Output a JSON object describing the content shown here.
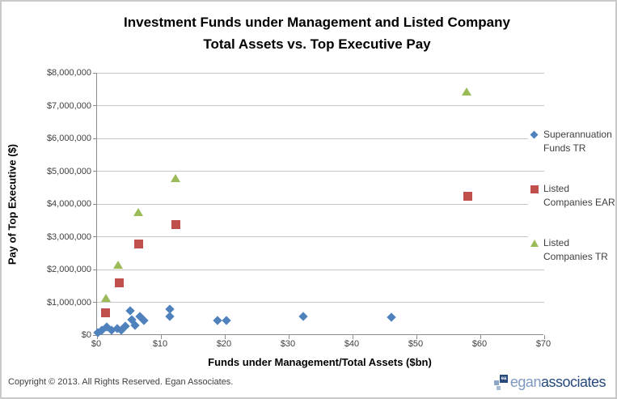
{
  "title": {
    "line1": "Investment Funds under Management and Listed Company",
    "line2": "Total Assets vs. Top Executive Pay"
  },
  "axes": {
    "y_title": "Pay of Top Executive ($)",
    "x_title": "Funds under Management/Total Assets ($bn)",
    "y_ticks": [
      {
        "value": 8000000,
        "label": "$8,000,000"
      },
      {
        "value": 7000000,
        "label": "$7,000,000"
      },
      {
        "value": 6000000,
        "label": "$6,000,000"
      },
      {
        "value": 5000000,
        "label": "$5,000,000"
      },
      {
        "value": 4000000,
        "label": "$4,000,000"
      },
      {
        "value": 3000000,
        "label": "$3,000,000"
      },
      {
        "value": 2000000,
        "label": "$2,000,000"
      },
      {
        "value": 1000000,
        "label": "$1,000,000"
      },
      {
        "value": 0,
        "label": "$0"
      }
    ],
    "x_ticks": [
      {
        "value": 0,
        "label": "$0"
      },
      {
        "value": 10,
        "label": "$10"
      },
      {
        "value": 20,
        "label": "$20"
      },
      {
        "value": 30,
        "label": "$30"
      },
      {
        "value": 40,
        "label": "$40"
      },
      {
        "value": 50,
        "label": "$50"
      },
      {
        "value": 60,
        "label": "$60"
      },
      {
        "value": 70,
        "label": "$70"
      }
    ]
  },
  "chart_data": {
    "type": "scatter",
    "title": "Investment Funds under Management and Listed Company Total Assets vs. Top Executive Pay",
    "xlabel": "Funds under Management/Total Assets ($bn)",
    "ylabel": "Pay of Top Executive ($)",
    "xlim": [
      0,
      70
    ],
    "ylim": [
      0,
      8000000
    ],
    "grid": "horizontal-only",
    "legend_position": "right",
    "series": [
      {
        "name": "Superannuation Funds TR",
        "marker": "diamond",
        "color": "#4F81BD",
        "points": [
          [
            0.1,
            70000
          ],
          [
            0.7,
            150000
          ],
          [
            1.5,
            250000
          ],
          [
            2.3,
            150000
          ],
          [
            3.2,
            190000
          ],
          [
            3.8,
            150000
          ],
          [
            4.4,
            270000
          ],
          [
            5.2,
            730000
          ],
          [
            5.5,
            480000
          ],
          [
            6.0,
            290000
          ],
          [
            6.7,
            560000
          ],
          [
            7.3,
            440000
          ],
          [
            11.4,
            790000
          ],
          [
            11.4,
            580000
          ],
          [
            18.9,
            440000
          ],
          [
            20.3,
            440000
          ],
          [
            32.3,
            580000
          ],
          [
            46.1,
            540000
          ]
        ]
      },
      {
        "name": "Listed Companies EAR",
        "marker": "square",
        "color": "#C0504D",
        "points": [
          [
            1.3,
            680000
          ],
          [
            3.4,
            1610000
          ],
          [
            6.5,
            2790000
          ],
          [
            12.3,
            3390000
          ],
          [
            58.0,
            4240000
          ]
        ]
      },
      {
        "name": "Listed Companies TR",
        "marker": "triangle",
        "color": "#9BBB59",
        "points": [
          [
            1.4,
            1110000
          ],
          [
            3.3,
            2130000
          ],
          [
            6.4,
            3720000
          ],
          [
            12.3,
            4770000
          ],
          [
            57.9,
            7400000
          ]
        ]
      }
    ]
  },
  "legend": {
    "entries": [
      "Superannuation Funds TR",
      "Listed Companies EAR",
      "Listed Companies TR"
    ]
  },
  "footer": {
    "copyright": "Copyright © 2013. All Rights Reserved. Egan Associates.",
    "logo_icon_text": "ea",
    "logo_word_light": "egan",
    "logo_word_dark": "associates"
  },
  "colors": {
    "series_blue": "#4F81BD",
    "series_red": "#C0504D",
    "series_green": "#9BBB59",
    "gridline": "#c6c6c6",
    "axis_line": "#8c8c8c",
    "tick_text": "#3f3f3f",
    "logo_light_blue": "#7e99bf",
    "logo_dark_blue": "#28497c"
  }
}
